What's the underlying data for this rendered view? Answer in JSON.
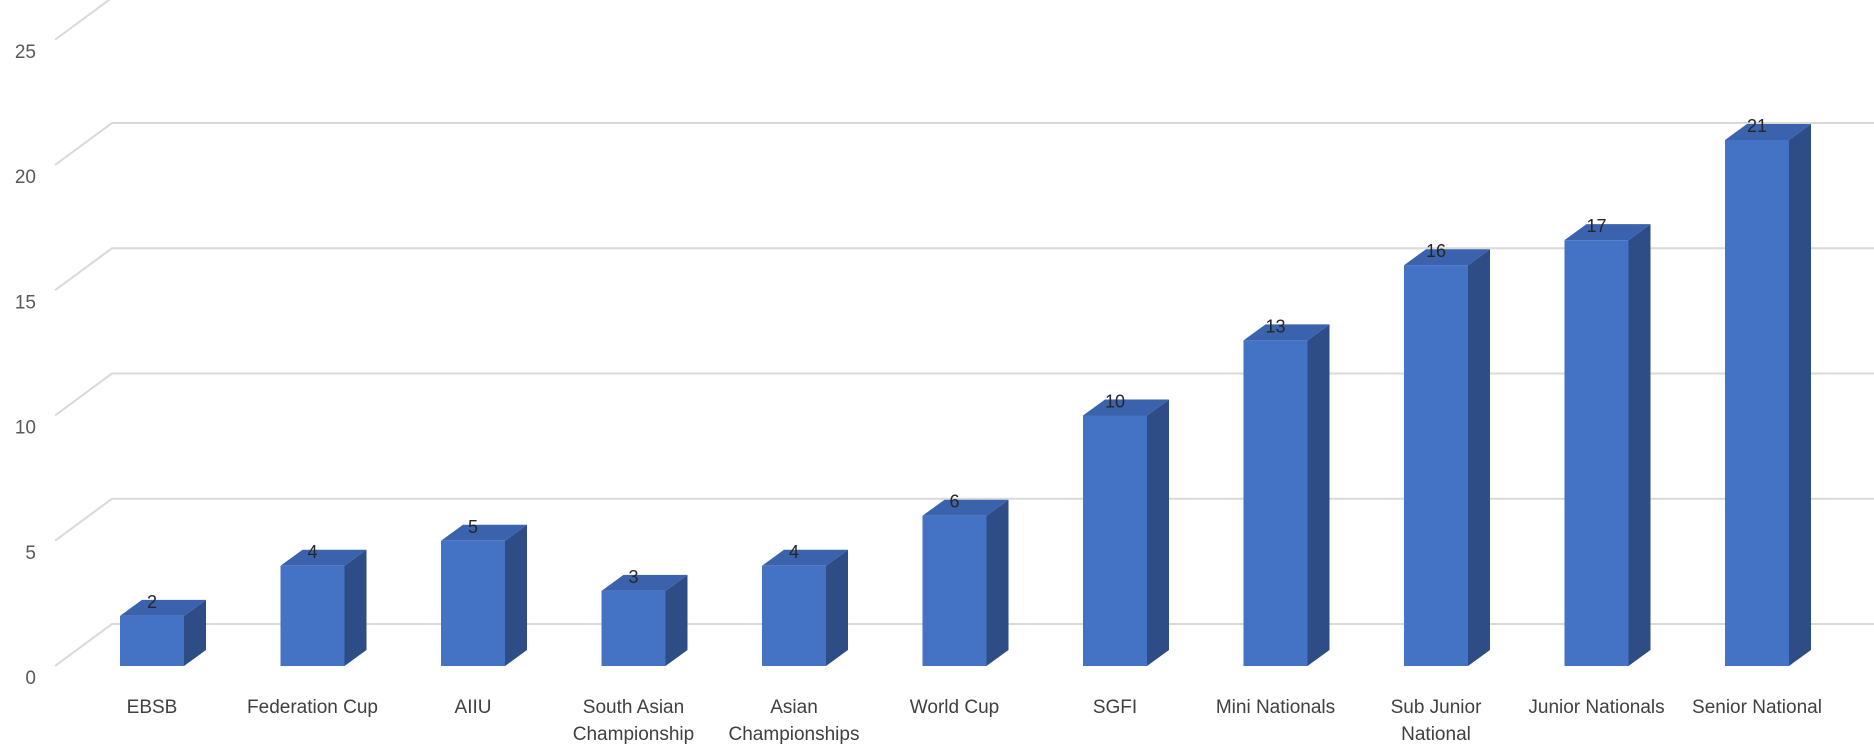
{
  "chart_data": {
    "type": "bar",
    "title": "",
    "xlabel": "",
    "ylabel": "",
    "style": "3d-column",
    "categories": [
      "EBSB",
      "Federation Cup",
      "AIIU",
      "South Asian Championship",
      "Asian Championships",
      "World Cup",
      "SGFI",
      "Mini Nationals",
      "Sub Junior National",
      "Junior Nationals",
      "Senior National"
    ],
    "category_lines": [
      [
        "EBSB"
      ],
      [
        "Federation Cup"
      ],
      [
        "AIIU"
      ],
      [
        "South Asian",
        "Championship"
      ],
      [
        "Asian",
        "Championships"
      ],
      [
        "World Cup"
      ],
      [
        "SGFI"
      ],
      [
        "Mini Nationals"
      ],
      [
        "Sub Junior",
        "National"
      ],
      [
        "Junior Nationals"
      ],
      [
        "Senior National"
      ]
    ],
    "values": [
      2,
      4,
      5,
      3,
      4,
      6,
      10,
      13,
      16,
      17,
      21
    ],
    "yticks": [
      "0",
      "5",
      "10",
      "15",
      "20",
      "25"
    ],
    "ylim": [
      0,
      25
    ],
    "grid": true,
    "legend": "none",
    "colors": {
      "bar_front": "#4472c4",
      "bar_top": "#3a62ad",
      "bar_side": "#2e4d86",
      "grid": "#d9d9d9"
    }
  }
}
